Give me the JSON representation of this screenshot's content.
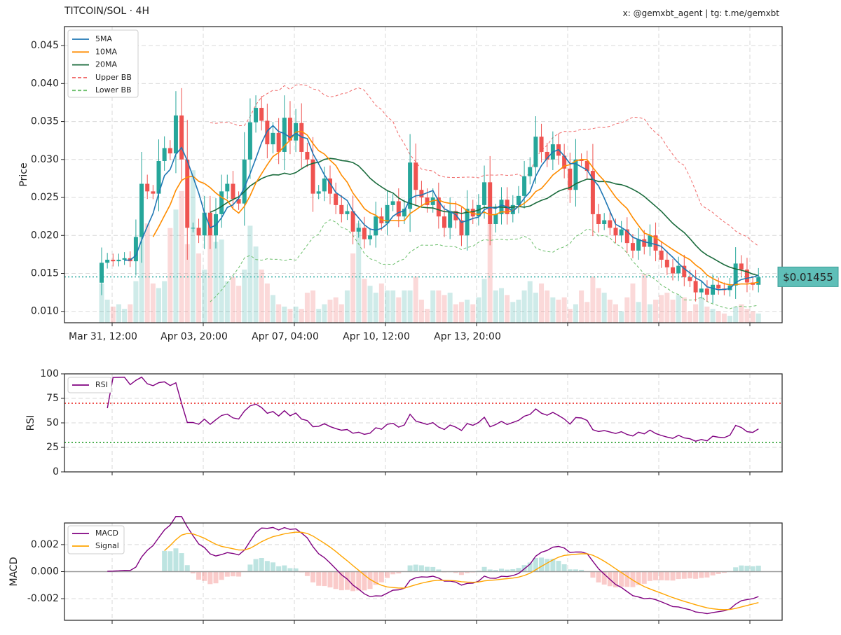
{
  "header": {
    "title": "TITCOIN/SOL · 4H",
    "credit": "x: @gemxbt_agent | tg: t.me/gemxbt"
  },
  "colors": {
    "up": "#26a69a",
    "down": "#ef5350",
    "ma5": "#1f77b4",
    "ma10": "#ff8c00",
    "ma20": "#1a6b3c",
    "upper_bb": "#f06a6a",
    "lower_bb": "#6cbf6c",
    "rsi": "#800080",
    "macd": "#800080",
    "signal": "#ffa500",
    "current_price": "#5fbfb8"
  },
  "chart_data": [
    {
      "type": "candlestick",
      "ylabel": "Price",
      "ylim": [
        0.0085,
        0.0475
      ],
      "yticks": [
        "0.010",
        "0.015",
        "0.020",
        "0.025",
        "0.030",
        "0.035",
        "0.040",
        "0.045"
      ],
      "xticks": [
        "Mar 31, 12:00",
        "Apr 03, 20:00",
        "Apr 07, 04:00",
        "Apr 10, 12:00",
        "Apr 13, 20:00"
      ],
      "grid": true,
      "legend_position": "top-left",
      "legend": [
        "5MA",
        "10MA",
        "20MA",
        "Upper BB",
        "Lower BB"
      ],
      "current_price_label": "$0.01455",
      "current_price": 0.01455,
      "close": [
        0.0164,
        0.0168,
        0.0166,
        0.0168,
        0.017,
        0.0166,
        0.0198,
        0.0268,
        0.0258,
        0.0255,
        0.0298,
        0.0315,
        0.0308,
        0.0358,
        0.03,
        0.021,
        0.021,
        0.02,
        0.023,
        0.02,
        0.0228,
        0.0258,
        0.0268,
        0.0248,
        0.0242,
        0.03,
        0.0349,
        0.0368,
        0.0351,
        0.032,
        0.0335,
        0.031,
        0.0355,
        0.0325,
        0.0348,
        0.031,
        0.03,
        0.0255,
        0.0258,
        0.0275,
        0.0255,
        0.024,
        0.0228,
        0.0232,
        0.0205,
        0.021,
        0.0195,
        0.02,
        0.0225,
        0.0216,
        0.024,
        0.0245,
        0.0225,
        0.0235,
        0.0296,
        0.026,
        0.025,
        0.024,
        0.025,
        0.0225,
        0.021,
        0.0232,
        0.022,
        0.02,
        0.0235,
        0.0225,
        0.024,
        0.027,
        0.0215,
        0.0228,
        0.0247,
        0.0228,
        0.024,
        0.0252,
        0.0278,
        0.029,
        0.033,
        0.031,
        0.03,
        0.032,
        0.0305,
        0.0288,
        0.026,
        0.03,
        0.0298,
        0.0285,
        0.0228,
        0.0215,
        0.022,
        0.021,
        0.02,
        0.0208,
        0.019,
        0.018,
        0.0195,
        0.0185,
        0.02,
        0.018,
        0.0168,
        0.0158,
        0.015,
        0.016,
        0.0145,
        0.014,
        0.0125,
        0.013,
        0.0122,
        0.0135,
        0.013,
        0.0128,
        0.0134,
        0.0163,
        0.0155,
        0.0138,
        0.0135,
        0.0145
      ],
      "volume": [
        0.17,
        0.1,
        0.07,
        0.08,
        0.06,
        0.08,
        0.18,
        0.38,
        0.43,
        0.17,
        0.15,
        0.18,
        0.41,
        0.49,
        0.57,
        0.34,
        0.66,
        0.3,
        0.23,
        0.45,
        0.35,
        0.36,
        0.18,
        0.2,
        0.16,
        0.23,
        0.42,
        0.33,
        0.23,
        0.17,
        0.12,
        0.08,
        0.07,
        0.06,
        0.07,
        0.06,
        0.13,
        0.14,
        0.06,
        0.08,
        0.1,
        0.11,
        0.08,
        0.14,
        0.3,
        0.43,
        0.19,
        0.16,
        0.13,
        0.17,
        0.14,
        0.14,
        0.11,
        0.14,
        0.14,
        0.2,
        0.1,
        0.06,
        0.14,
        0.14,
        0.12,
        0.13,
        0.08,
        0.09,
        0.1,
        0.08,
        0.11,
        0.19,
        0.43,
        0.14,
        0.15,
        0.12,
        0.09,
        0.1,
        0.14,
        0.18,
        0.13,
        0.17,
        0.14,
        0.11,
        0.1,
        0.11,
        0.06,
        0.08,
        0.14,
        0.09,
        0.2,
        0.15,
        0.13,
        0.1,
        0.08,
        0.05,
        0.11,
        0.17,
        0.09,
        0.21,
        0.08,
        0.1,
        0.12,
        0.13,
        0.1,
        0.12,
        0.11,
        0.05,
        0.08,
        0.11,
        0.07,
        0.06,
        0.05,
        0.04,
        0.03,
        0.07,
        0.08,
        0.06,
        0.05,
        0.04
      ]
    },
    {
      "type": "line",
      "ylabel": "RSI",
      "ylim": [
        0,
        100
      ],
      "yticks": [
        "0",
        "25",
        "50",
        "75",
        "100"
      ],
      "reference_lines": [
        70,
        30
      ],
      "legend": [
        "RSI"
      ],
      "grid": true,
      "legend_position": "top-left"
    },
    {
      "type": "line+bar",
      "ylabel": "MACD",
      "ylim": [
        -0.0036,
        0.0036
      ],
      "yticks": [
        "0.002",
        "0.000",
        "-0.002"
      ],
      "legend": [
        "MACD",
        "Signal"
      ],
      "grid": true,
      "legend_position": "top-left"
    }
  ]
}
